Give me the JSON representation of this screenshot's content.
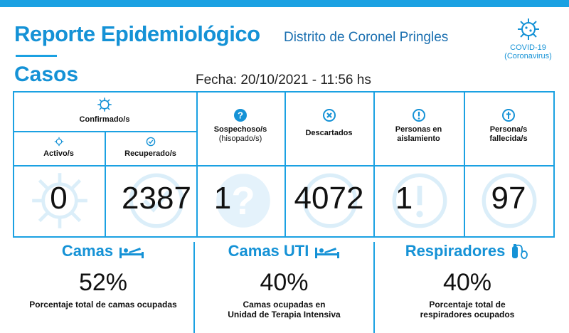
{
  "header": {
    "title": "Reporte Epidemiológico",
    "subtitle": "Distrito de Coronel Pringles",
    "section": "Casos",
    "fecha": "Fecha: 20/10/2021 - 11:56 hs",
    "covid_line1": "COVID-19",
    "covid_line2": "(Coronavirus)",
    "covid_icon": "virus-icon"
  },
  "cases": {
    "confirmados_label": "Confirmado/s",
    "activos": {
      "label": "Activo/s",
      "value": "0",
      "icon": "virus-icon"
    },
    "recuperados": {
      "label": "Recuperado/s",
      "value": "2387",
      "icon": "check-circle-icon"
    },
    "sospechosos": {
      "label_line1": "Sospechoso/s",
      "label_line2": "(hisopado/s)",
      "value": "1",
      "icon": "question-circle-icon"
    },
    "descartados": {
      "label": "Descartados",
      "value": "4072",
      "icon": "x-circle-icon"
    },
    "aislamiento": {
      "label_line1": "Personas en",
      "label_line2": "aislamiento",
      "value": "1",
      "icon": "exclamation-circle-icon"
    },
    "fallecidos": {
      "label_line1": "Persona/s",
      "label_line2": "fallecida/s",
      "value": "97",
      "icon": "cross-circle-icon"
    }
  },
  "resources": [
    {
      "title": "Camas",
      "value": "52%",
      "desc_line1": "Porcentaje total de camas ocupadas",
      "desc_line2": "",
      "icon": "bed-icon"
    },
    {
      "title": "Camas UTI",
      "value": "40%",
      "desc_line1": "Camas ocupadas en",
      "desc_line2": "Unidad de Terapia Intensiva",
      "icon": "bed-icon"
    },
    {
      "title": "Respiradores",
      "value": "40%",
      "desc_line1": "Porcentaje total de",
      "desc_line2": "respiradores ocupados",
      "icon": "oxygen-tank-icon"
    }
  ],
  "colors": {
    "accent": "#1ba1e2",
    "title": "#1592d6",
    "ghost": "#dbeef9"
  }
}
